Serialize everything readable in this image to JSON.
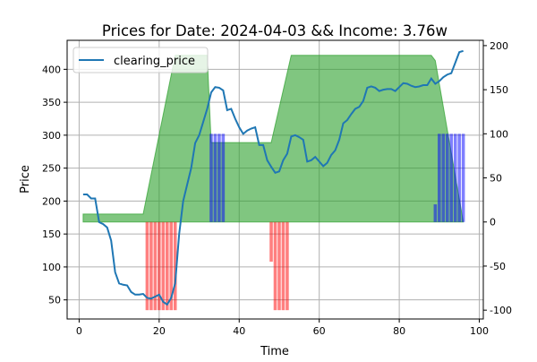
{
  "chart_data": {
    "type": "line",
    "title": "Prices for Date: 2024-04-03 && Income: 3.76w",
    "xlabel": "Time",
    "ylabel": "Price",
    "xlim": [
      -3,
      101
    ],
    "ylim": [
      21,
      444
    ],
    "y2lim": [
      -110,
      206
    ],
    "grid": true,
    "legend_position": "top-left",
    "xticks": [
      0,
      20,
      40,
      60,
      80,
      100
    ],
    "yticks": [
      50,
      100,
      150,
      200,
      250,
      300,
      350,
      400
    ],
    "y2ticks": [
      -100,
      -50,
      0,
      50,
      100,
      150,
      200
    ],
    "series": [
      {
        "name": "clearing_price",
        "axis": "left",
        "color": "#1f77b4",
        "x": [
          1,
          2,
          3,
          4,
          5,
          6,
          7,
          8,
          9,
          10,
          11,
          12,
          13,
          14,
          15,
          16,
          17,
          18,
          19,
          20,
          21,
          22,
          23,
          24,
          25,
          26,
          27,
          28,
          29,
          30,
          31,
          32,
          33,
          34,
          35,
          36,
          37,
          38,
          39,
          40,
          41,
          42,
          43,
          44,
          45,
          46,
          47,
          48,
          49,
          50,
          51,
          52,
          53,
          54,
          55,
          56,
          57,
          58,
          59,
          60,
          61,
          62,
          63,
          64,
          65,
          66,
          67,
          68,
          69,
          70,
          71,
          72,
          73,
          74,
          75,
          76,
          77,
          78,
          79,
          80,
          81,
          82,
          83,
          84,
          85,
          86,
          87,
          88,
          89,
          90,
          91,
          92,
          93,
          94,
          95,
          96
        ],
        "values": [
          210,
          210,
          204,
          204,
          168,
          165,
          160,
          140,
          92,
          75,
          73,
          72,
          62,
          58,
          58,
          59,
          53,
          52,
          55,
          58,
          47,
          43,
          53,
          75,
          150,
          200,
          225,
          250,
          288,
          300,
          320,
          340,
          365,
          373,
          372,
          368,
          338,
          340,
          325,
          312,
          302,
          307,
          310,
          312,
          285,
          285,
          262,
          252,
          243,
          245,
          262,
          272,
          298,
          300,
          297,
          293,
          260,
          262,
          267,
          260,
          253,
          258,
          270,
          277,
          293,
          318,
          323,
          332,
          340,
          343,
          352,
          372,
          374,
          372,
          367,
          369,
          370,
          370,
          367,
          373,
          379,
          378,
          375,
          373,
          374,
          376,
          376,
          386,
          378,
          382,
          388,
          392,
          394,
          410,
          426,
          428
        ]
      }
    ],
    "fill_area": {
      "axis": "right",
      "color": "#2ca02c",
      "x": [
        1,
        16,
        24,
        32,
        33,
        36,
        48,
        53,
        88,
        89,
        96
      ],
      "upper": [
        9,
        9,
        189,
        189,
        90,
        90,
        90,
        189,
        189,
        183,
        0
      ],
      "lower": 0
    },
    "bars": [
      {
        "axis": "right",
        "color": "#ff0000",
        "x": [
          17,
          18,
          19,
          20,
          21,
          22,
          23,
          24,
          48,
          49,
          50,
          51,
          52
        ],
        "values": [
          -100,
          -100,
          -100,
          -100,
          -100,
          -100,
          -100,
          -100,
          -45,
          -100,
          -100,
          -100,
          -100
        ]
      },
      {
        "axis": "right",
        "color": "#0000ff",
        "x": [
          33,
          34,
          35,
          36,
          89,
          90,
          91,
          92,
          93,
          94,
          95,
          96
        ],
        "values": [
          100,
          100,
          100,
          100,
          20,
          100,
          100,
          100,
          100,
          100,
          100,
          100
        ]
      }
    ]
  }
}
